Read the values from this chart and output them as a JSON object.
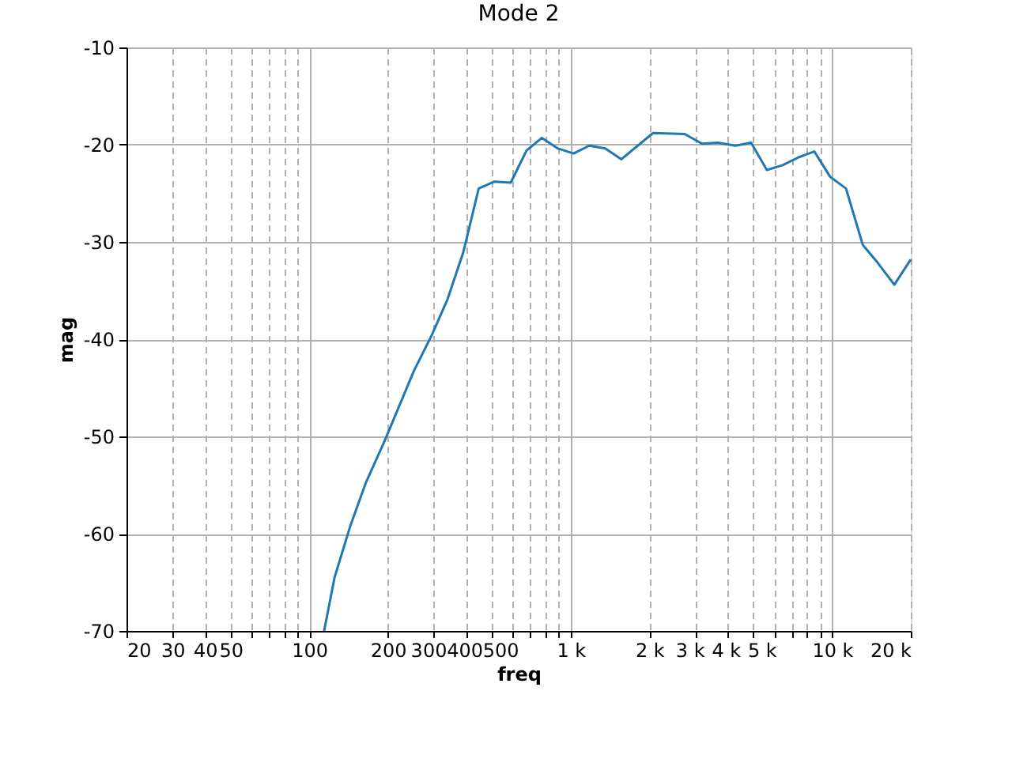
{
  "chart_data": {
    "type": "line",
    "title": "Mode 2",
    "xlabel": "freq",
    "ylabel": "mag",
    "log": "x",
    "grid": true,
    "marker": "none",
    "line_style": "solid",
    "xlim": [
      20,
      20000
    ],
    "ylim": [
      -70,
      -10
    ],
    "xticks": [
      20,
      30,
      40,
      50,
      {
        "value": 60,
        "label": null
      },
      {
        "value": 70,
        "label": null
      },
      {
        "value": 80,
        "label": null
      },
      {
        "value": 90,
        "label": null
      },
      100,
      200,
      300,
      400,
      500,
      {
        "value": 600,
        "label": null
      },
      {
        "value": 700,
        "label": null
      },
      {
        "value": 800,
        "label": null
      },
      {
        "value": 900,
        "label": null
      },
      {
        "value": 1000,
        "label": "1 k"
      },
      {
        "value": 2000,
        "label": "2 k"
      },
      {
        "value": 3000,
        "label": "3 k"
      },
      {
        "value": 4000,
        "label": "4 k"
      },
      {
        "value": 5000,
        "label": "5 k"
      },
      {
        "value": 6000,
        "label": null
      },
      {
        "value": 7000,
        "label": null
      },
      {
        "value": 8000,
        "label": null
      },
      {
        "value": 9000,
        "label": null
      },
      {
        "value": 10000,
        "label": "10 k"
      },
      {
        "value": 20000,
        "label": "20 k"
      }
    ],
    "yticks": [
      -70,
      -60,
      -50,
      -40,
      -30,
      -20,
      -10
    ],
    "x": [
      114,
      125,
      144,
      165,
      194,
      251,
      294,
      338,
      388,
      445,
      511,
      590,
      678,
      776,
      895,
      1026,
      1178,
      1360,
      1563,
      2066,
      2730,
      3180,
      3660,
      4270,
      4900,
      5630,
      6470,
      7440,
      8550,
      9830,
      11300,
      13100,
      14900,
      17300,
      20000
    ],
    "series": [
      {
        "color": "#1f77b4",
        "values": [
          -70.0,
          -64.5,
          -59.1,
          -54.7,
          -50.5,
          -43.3,
          -39.6,
          -35.9,
          -31.1,
          -24.5,
          -23.8,
          -23.9,
          -20.6,
          -19.3,
          -20.4,
          -20.9,
          -20.1,
          -20.4,
          -21.5,
          -18.8,
          -18.9,
          -19.9,
          -19.8,
          -20.1,
          -19.8,
          -22.6,
          -22.1,
          -21.3,
          -20.7,
          -23.3,
          -24.5,
          -30.3,
          -32.1,
          -34.4,
          -31.8
        ]
      }
    ]
  }
}
